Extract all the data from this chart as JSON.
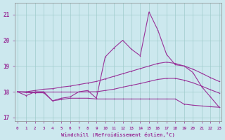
{
  "xlabel": "Windchill (Refroidissement éolien,°C)",
  "bg_color": "#cce8ee",
  "line_color": "#993399",
  "grid_color": "#a0cccc",
  "yticks": [
    17,
    18,
    19,
    20,
    21
  ],
  "xticks": [
    0,
    1,
    2,
    3,
    4,
    5,
    6,
    7,
    8,
    9,
    10,
    11,
    12,
    13,
    14,
    15,
    16,
    17,
    18,
    19,
    20,
    21,
    22,
    23
  ],
  "hours": [
    0,
    1,
    2,
    3,
    4,
    5,
    6,
    7,
    8,
    9,
    10,
    11,
    12,
    13,
    14,
    15,
    16,
    17,
    18,
    19,
    20,
    21,
    22,
    23
  ],
  "spiky_line": [
    18.0,
    17.85,
    18.0,
    18.0,
    17.65,
    17.75,
    17.8,
    18.0,
    18.05,
    17.75,
    19.35,
    19.7,
    20.0,
    19.65,
    19.4,
    21.1,
    20.4,
    19.45,
    19.05,
    19.0,
    18.75,
    18.2,
    17.8,
    17.4
  ],
  "upper_band": [
    18.0,
    18.0,
    18.05,
    18.1,
    18.12,
    18.18,
    18.22,
    18.28,
    18.34,
    18.4,
    18.5,
    18.6,
    18.7,
    18.8,
    18.9,
    19.0,
    19.1,
    19.15,
    19.1,
    19.0,
    18.88,
    18.72,
    18.55,
    18.4
  ],
  "middle_band": [
    18.0,
    17.99,
    17.99,
    17.99,
    17.99,
    17.99,
    17.99,
    17.99,
    18.0,
    18.0,
    18.05,
    18.1,
    18.18,
    18.25,
    18.32,
    18.4,
    18.48,
    18.52,
    18.52,
    18.45,
    18.35,
    18.22,
    18.08,
    17.95
  ],
  "lower_band": [
    18.0,
    17.97,
    17.96,
    17.96,
    17.65,
    17.7,
    17.75,
    17.75,
    17.75,
    17.72,
    17.72,
    17.72,
    17.72,
    17.72,
    17.72,
    17.72,
    17.72,
    17.72,
    17.72,
    17.52,
    17.48,
    17.45,
    17.42,
    17.4
  ]
}
